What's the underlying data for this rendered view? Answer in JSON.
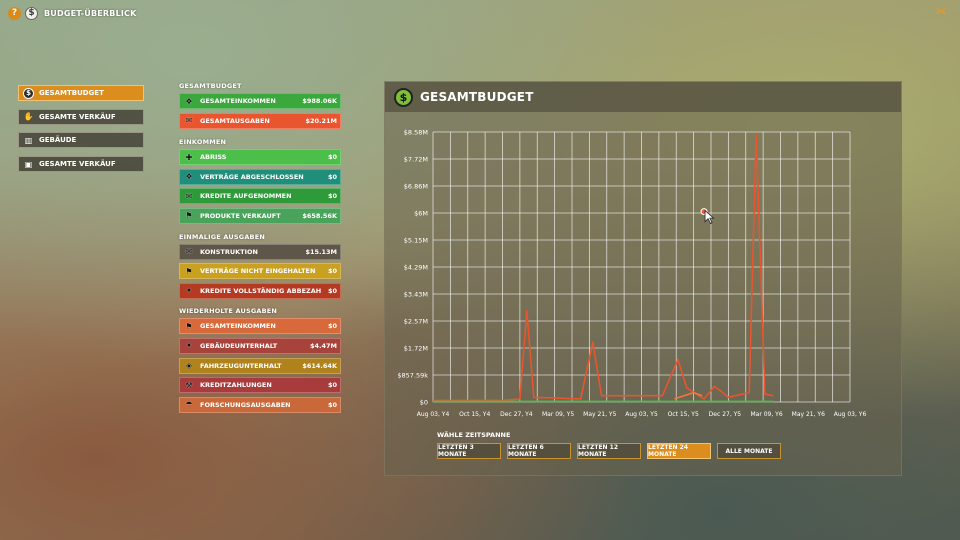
{
  "header": {
    "title": "BUDGET-ÜBERBLICK",
    "help_icon": "?",
    "dollar_icon": "$"
  },
  "nav": {
    "items": [
      {
        "label": "GESAMTBUDGET",
        "icon": "dollar-icon",
        "active": true
      },
      {
        "label": "GESAMTE VERKÄUF",
        "icon": "handshake-icon",
        "active": false
      },
      {
        "label": "GEBÄUDE",
        "icon": "building-icon",
        "active": false
      },
      {
        "label": "GESAMTE VERKÄUF",
        "icon": "box-icon",
        "active": false
      }
    ]
  },
  "summary": {
    "title": "GESAMTBUDGET",
    "rows": [
      {
        "label": "GESAMTEINKOMMEN",
        "value": "$988.06K",
        "color": "#3aa83c"
      },
      {
        "label": "GESAMTAUSGABEN",
        "value": "$20.21M",
        "color": "#e8552e"
      }
    ]
  },
  "income": {
    "title": "EINKOMMEN",
    "rows": [
      {
        "label": "ABRISS",
        "value": "$0",
        "color": "#4bbf4a"
      },
      {
        "label": "VERTRÄGE ABGESCHLOSSEN",
        "value": "$0",
        "color": "#1f8f7c"
      },
      {
        "label": "KREDITE AUFGENOMMEN",
        "value": "$0",
        "color": "#2e9a3a"
      },
      {
        "label": "PRODUKTE VERKAUFT",
        "value": "$658.56K",
        "color": "#4aa35a"
      }
    ]
  },
  "one_time": {
    "title": "EINMALIGE AUSGABEN",
    "rows": [
      {
        "label": "KONSTRUKTION",
        "value": "$15.13M",
        "color": "#5e5648"
      },
      {
        "label": "VERTRÄGE NICHT EINGEHALTEN",
        "value": "$0",
        "color": "#c9a020"
      },
      {
        "label": "KREDITE VOLLSTÄNDIG ABBEZAH",
        "value": "$0",
        "color": "#b53a22"
      }
    ]
  },
  "recurring": {
    "title": "WIEDERHOLTE AUSGABEN",
    "rows": [
      {
        "label": "GESAMTEINKOMMEN",
        "value": "$0",
        "color": "#d8693a"
      },
      {
        "label": "GEBÄUDEUNTERHALT",
        "value": "$4.47M",
        "color": "#a8433c"
      },
      {
        "label": "FAHRZEUGUNTERHALT",
        "value": "$614.64K",
        "color": "#b0821c"
      },
      {
        "label": "KREDITZAHLUNGEN",
        "value": "$0",
        "color": "#a83c3c"
      },
      {
        "label": "FORSCHUNGSAUSGABEN",
        "value": "$0",
        "color": "#c96838"
      }
    ]
  },
  "panel": {
    "title": "GESAMTBUDGET",
    "timespan_label": "WÄHLE ZEITSPANNE",
    "timespan_buttons": [
      {
        "label": "LETZTEN 3 MONATE",
        "active": false
      },
      {
        "label": "LETZTEN 6 MONATE",
        "active": false
      },
      {
        "label": "LETZTEN 12 MONATE",
        "active": false
      },
      {
        "label": "LETZTEN 24 MONATE",
        "active": true
      },
      {
        "label": "ALLE MONATE",
        "active": false
      }
    ]
  },
  "chart_data": {
    "type": "line",
    "title": "",
    "xlabel": "",
    "ylabel": "",
    "y_tick_labels": [
      "$0",
      "$857.59k",
      "$1.72M",
      "$2.57M",
      "$3.43M",
      "$4.29M",
      "$5.15M",
      "$6M",
      "$6.86M",
      "$7.72M",
      "$8.58M"
    ],
    "x_tick_labels": [
      "Aug 03, Y4",
      "Oct 15, Y4",
      "Dec 27, Y4",
      "Mar 09, Y5",
      "May 21, Y5",
      "Aug 03, Y5",
      "Oct 15, Y5",
      "Dec 27, Y5",
      "Mar 09, Y6",
      "May 21, Y6",
      "Aug 03, Y6"
    ],
    "ylim": [
      0,
      8.58
    ],
    "y_unit": "M",
    "grid": true,
    "x_count": 25,
    "series": [
      {
        "color": "#e8552e",
        "points": [
          [
            0,
            0.05
          ],
          [
            4,
            0.05
          ],
          [
            5,
            0.1
          ],
          [
            5.4,
            2.9
          ],
          [
            5.8,
            0.15
          ],
          [
            8.5,
            0.1
          ],
          [
            9.2,
            1.9
          ],
          [
            9.7,
            0.2
          ],
          [
            11.5,
            0.2
          ],
          [
            13.2,
            0.2
          ],
          [
            14.1,
            1.35
          ],
          [
            14.6,
            0.45
          ],
          [
            15.6,
            0.1
          ],
          [
            16.2,
            0.5
          ],
          [
            17.0,
            0.15
          ],
          [
            18.2,
            0.3
          ],
          [
            18.6,
            8.5
          ],
          [
            19.1,
            0.25
          ],
          [
            19.6,
            0.2
          ]
        ]
      },
      {
        "color": "#f07a3a",
        "points": [
          [
            13.9,
            0.1
          ],
          [
            15.0,
            0.3
          ],
          [
            15.5,
            0.2
          ]
        ]
      },
      {
        "color": "#4bbf4a",
        "points": [
          [
            0,
            0.02
          ],
          [
            19.6,
            0.02
          ]
        ]
      }
    ]
  }
}
